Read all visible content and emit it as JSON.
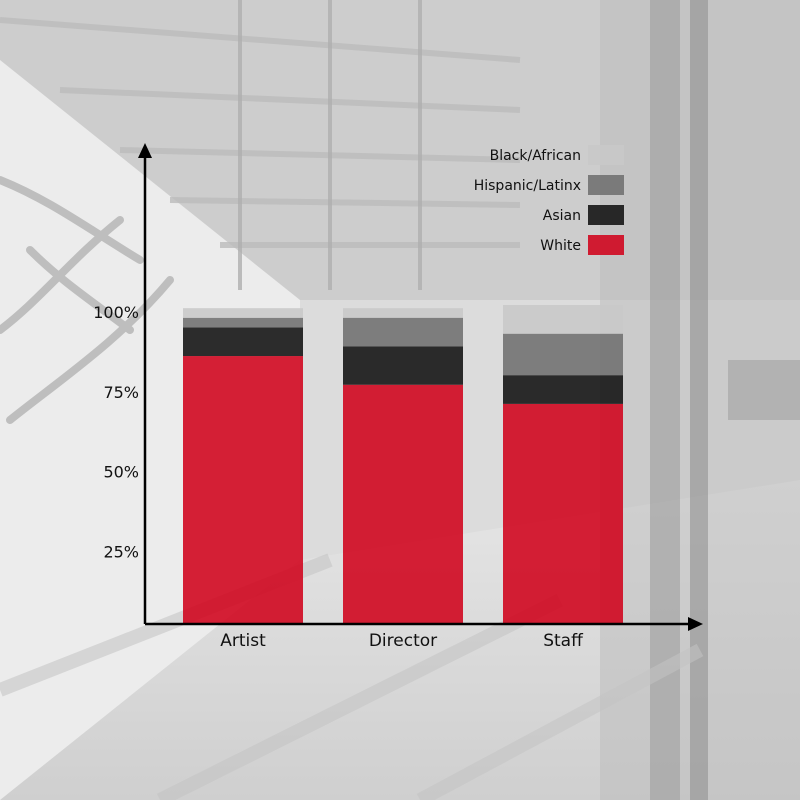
{
  "chart_data": {
    "type": "bar",
    "stacked": true,
    "categories": [
      "Artist",
      "Director",
      "Staff"
    ],
    "series": [
      {
        "name": "White",
        "values": [
          84,
          75,
          69
        ],
        "color": "#d0021b"
      },
      {
        "name": "Asian",
        "values": [
          9,
          12,
          9
        ],
        "color": "#111111"
      },
      {
        "name": "Hispanic/Latinx",
        "values": [
          3,
          9,
          13
        ],
        "color": "#6f6f6f"
      },
      {
        "name": "Black/African",
        "values": [
          3,
          3,
          9
        ],
        "color": "#c8c8c8"
      }
    ],
    "yticks": [
      25,
      50,
      75,
      100
    ],
    "ytick_labels": [
      "25%",
      "50%",
      "75%",
      "100%"
    ],
    "ylim": [
      0,
      100
    ],
    "legend_order": [
      "Black/African",
      "Hispanic/Latinx",
      "Asian",
      "White"
    ],
    "legend_position": "top-right",
    "grid": false,
    "title": "",
    "xlabel": "",
    "ylabel": ""
  },
  "background": {
    "subject": "grayscale-photo-of-glass-corridor"
  }
}
